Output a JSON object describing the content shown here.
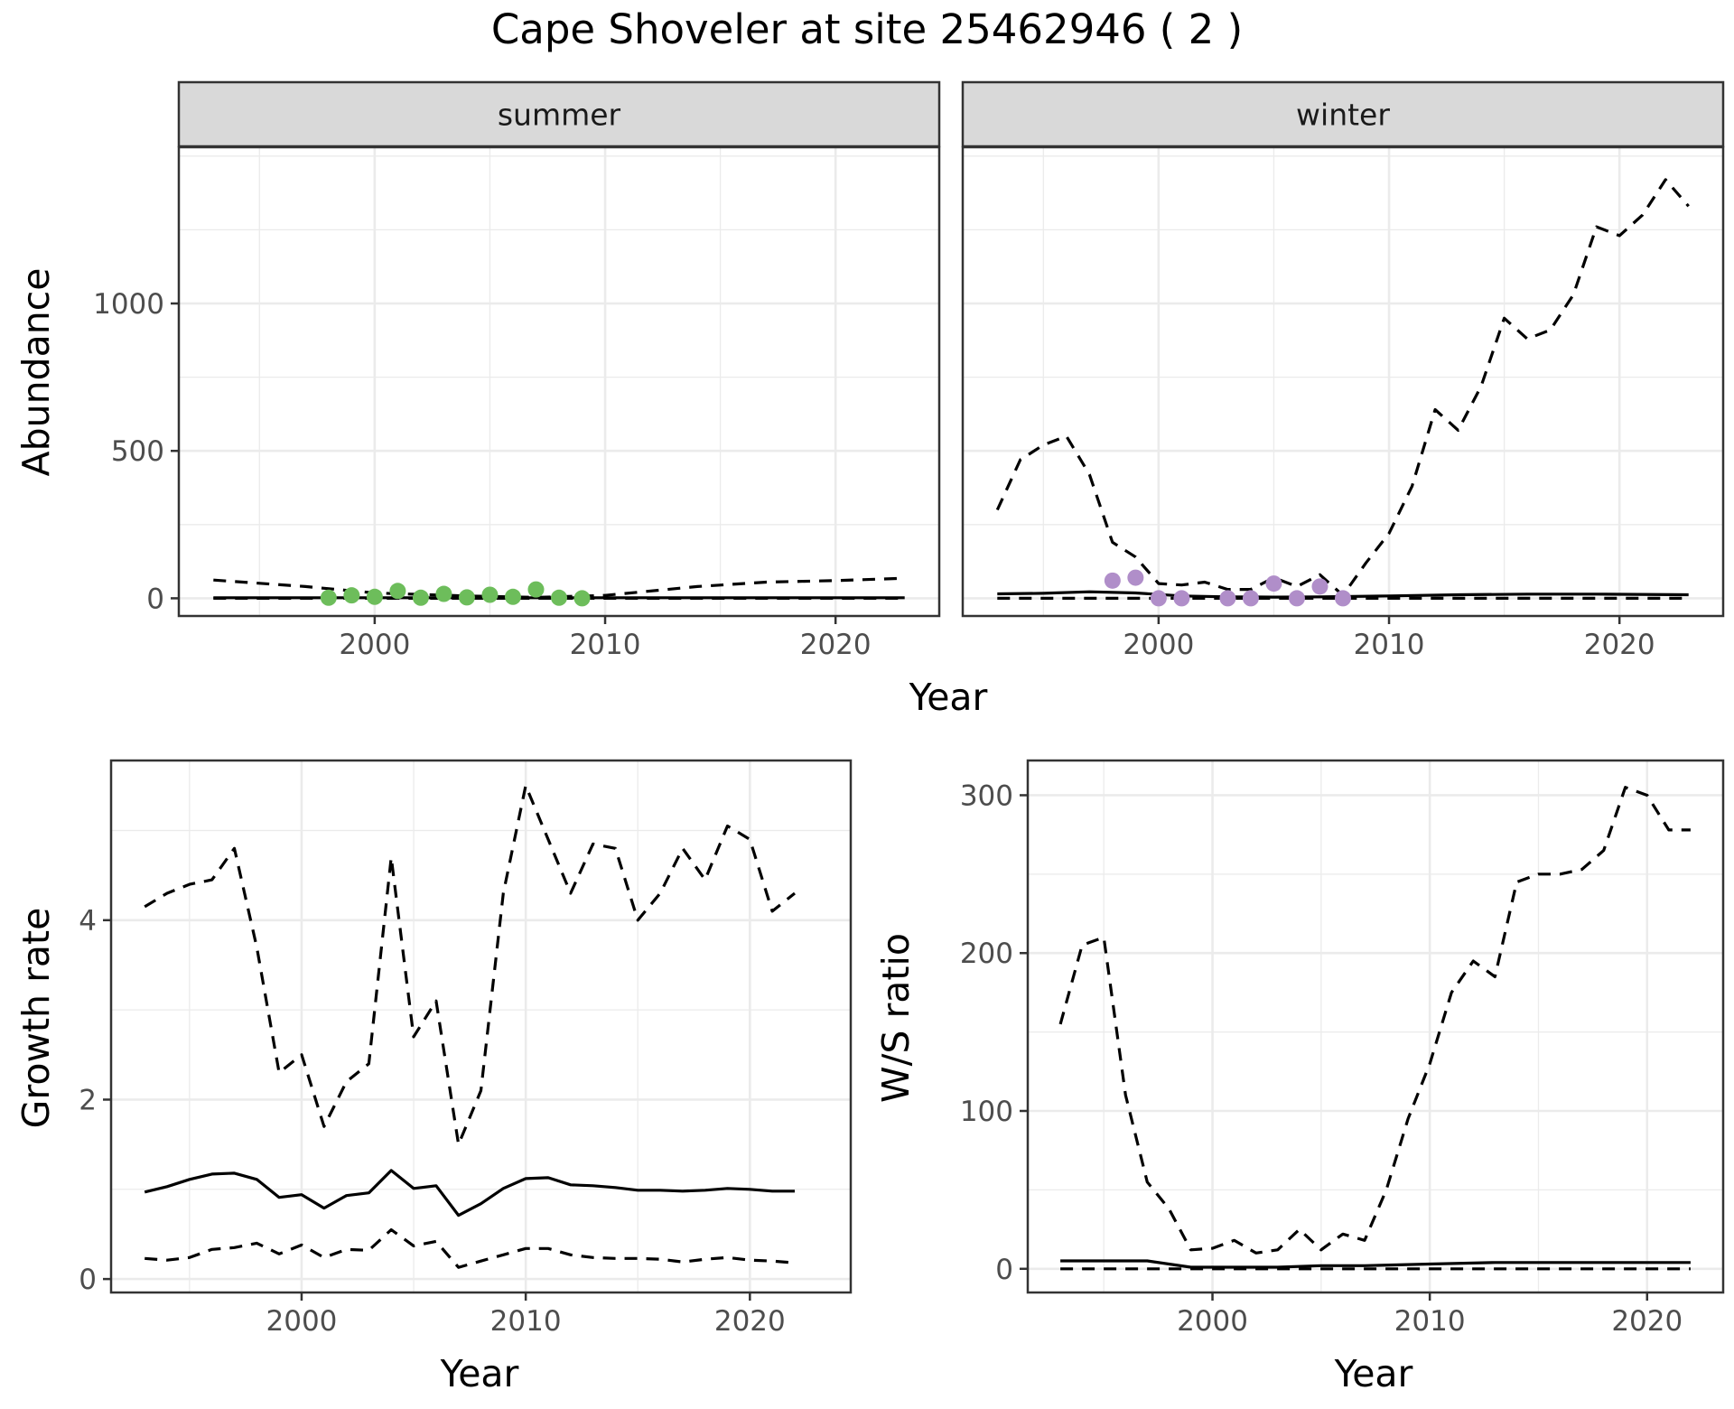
{
  "figure": {
    "title": "Cape Shoveler at site 25462946 ( 2 )"
  },
  "chart_data": [
    {
      "type": "line",
      "panel": "abundance",
      "facets": [
        "summer",
        "winter"
      ],
      "xlabel": "Year",
      "ylabel": "Abundance",
      "xlim": [
        1991.5,
        2024.5
      ],
      "ylim": [
        -60,
        1530
      ],
      "xticks": [
        2000,
        2010,
        2020
      ],
      "yticks": [
        0,
        500,
        1000
      ],
      "grid": true,
      "point_colors": {
        "summer": "#6dbd5b",
        "winter": "#b08ec9"
      },
      "series": [
        {
          "facet": "summer",
          "role": "estimate",
          "style": "solid",
          "x": [
            1993,
            2023
          ],
          "y": [
            2,
            2
          ]
        },
        {
          "facet": "summer",
          "role": "upper",
          "style": "dashed",
          "x": [
            1993,
            1997,
            2000,
            2004,
            2007,
            2010,
            2014,
            2017,
            2020,
            2023
          ],
          "y": [
            62,
            40,
            18,
            8,
            3,
            10,
            40,
            55,
            60,
            68
          ]
        },
        {
          "facet": "summer",
          "role": "lower",
          "style": "dashed",
          "x": [
            1993,
            2023
          ],
          "y": [
            0,
            0
          ]
        },
        {
          "facet": "summer",
          "role": "observed",
          "style": "points",
          "x": [
            1998,
            1999,
            2000,
            2001,
            2002,
            2003,
            2004,
            2005,
            2006,
            2007,
            2008,
            2009
          ],
          "y": [
            2,
            10,
            5,
            25,
            2,
            15,
            3,
            12,
            5,
            30,
            2,
            0
          ]
        },
        {
          "facet": "winter",
          "role": "estimate",
          "style": "solid",
          "x": [
            1993,
            1995,
            1997,
            1999,
            2001,
            2003,
            2005,
            2007,
            2010,
            2013,
            2016,
            2019,
            2023
          ],
          "y": [
            15,
            17,
            22,
            18,
            8,
            5,
            4,
            5,
            8,
            12,
            14,
            14,
            12
          ]
        },
        {
          "facet": "winter",
          "role": "upper",
          "style": "dashed",
          "x": [
            1993,
            1994,
            1995,
            1996,
            1997,
            1998,
            1999,
            2000,
            2001,
            2002,
            2003,
            2004,
            2005,
            2006,
            2007,
            2008,
            2009,
            2010,
            2011,
            2012,
            2013,
            2014,
            2015,
            2016,
            2017,
            2018,
            2019,
            2020,
            2021,
            2022,
            2023
          ],
          "y": [
            300,
            470,
            520,
            550,
            420,
            190,
            140,
            50,
            45,
            55,
            30,
            30,
            70,
            40,
            80,
            10,
            120,
            220,
            380,
            640,
            570,
            720,
            950,
            880,
            910,
            1030,
            1260,
            1230,
            1300,
            1420,
            1330
          ]
        },
        {
          "facet": "winter",
          "role": "lower",
          "style": "dashed",
          "x": [
            1993,
            2023
          ],
          "y": [
            0,
            0
          ]
        },
        {
          "facet": "winter",
          "role": "observed",
          "style": "points",
          "x": [
            1998,
            1999,
            2000,
            2001,
            2003,
            2004,
            2005,
            2006,
            2007,
            2008
          ],
          "y": [
            60,
            70,
            0,
            0,
            0,
            0,
            50,
            0,
            40,
            0
          ]
        }
      ]
    },
    {
      "type": "line",
      "panel": "growth-rate",
      "xlabel": "Year",
      "ylabel": "Growth rate",
      "xlim": [
        1991.5,
        2024.5
      ],
      "ylim": [
        -0.15,
        5.78
      ],
      "xticks": [
        2000,
        2010,
        2020
      ],
      "yticks": [
        0,
        2,
        4
      ],
      "grid": true,
      "series": [
        {
          "role": "estimate",
          "style": "solid",
          "x": [
            1993,
            1994,
            1995,
            1996,
            1997,
            1998,
            1999,
            2000,
            2001,
            2002,
            2003,
            2004,
            2005,
            2006,
            2007,
            2008,
            2009,
            2010,
            2011,
            2012,
            2013,
            2014,
            2015,
            2016,
            2017,
            2018,
            2019,
            2020,
            2021,
            2022
          ],
          "y": [
            0.97,
            1.03,
            1.11,
            1.17,
            1.18,
            1.11,
            0.91,
            0.94,
            0.79,
            0.93,
            0.96,
            1.21,
            1.01,
            1.04,
            0.71,
            0.84,
            1.01,
            1.12,
            1.13,
            1.05,
            1.04,
            1.02,
            0.99,
            0.99,
            0.98,
            0.99,
            1.01,
            1.0,
            0.98,
            0.98
          ]
        },
        {
          "role": "upper",
          "style": "dashed",
          "x": [
            1993,
            1994,
            1995,
            1996,
            1997,
            1998,
            1999,
            2000,
            2001,
            2002,
            2003,
            2004,
            2005,
            2006,
            2007,
            2008,
            2009,
            2010,
            2011,
            2012,
            2013,
            2014,
            2015,
            2016,
            2017,
            2018,
            2019,
            2020,
            2021,
            2022
          ],
          "y": [
            4.15,
            4.3,
            4.4,
            4.45,
            4.8,
            3.7,
            2.3,
            2.5,
            1.7,
            2.2,
            2.4,
            4.7,
            2.7,
            3.1,
            1.5,
            2.1,
            4.3,
            5.5,
            4.9,
            4.3,
            4.85,
            4.8,
            4.0,
            4.3,
            4.8,
            4.45,
            5.05,
            4.9,
            4.1,
            4.3
          ]
        },
        {
          "role": "lower",
          "style": "dashed",
          "x": [
            1993,
            1994,
            1995,
            1996,
            1997,
            1998,
            1999,
            2000,
            2001,
            2002,
            2003,
            2004,
            2005,
            2006,
            2007,
            2008,
            2009,
            2010,
            2011,
            2012,
            2013,
            2014,
            2015,
            2016,
            2017,
            2018,
            2019,
            2020,
            2021,
            2022
          ],
          "y": [
            0.23,
            0.21,
            0.24,
            0.33,
            0.35,
            0.4,
            0.28,
            0.38,
            0.24,
            0.33,
            0.32,
            0.55,
            0.37,
            0.42,
            0.13,
            0.2,
            0.27,
            0.34,
            0.34,
            0.27,
            0.24,
            0.23,
            0.23,
            0.22,
            0.19,
            0.22,
            0.24,
            0.21,
            0.2,
            0.18
          ]
        }
      ]
    },
    {
      "type": "line",
      "panel": "ws-ratio",
      "xlabel": "Year",
      "ylabel": "W/S ratio",
      "xlim": [
        1991.5,
        2023.5
      ],
      "ylim": [
        -15,
        322
      ],
      "xticks": [
        2000,
        2010,
        2020
      ],
      "yticks": [
        0,
        100,
        200,
        300
      ],
      "grid": true,
      "series": [
        {
          "role": "estimate",
          "style": "solid",
          "x": [
            1993,
            1995,
            1997,
            1999,
            2001,
            2003,
            2005,
            2007,
            2010,
            2013,
            2016,
            2019,
            2022
          ],
          "y": [
            5,
            5,
            5,
            1,
            1,
            1,
            2,
            2,
            3,
            4,
            4,
            4,
            4
          ]
        },
        {
          "role": "upper",
          "style": "dashed",
          "x": [
            1993,
            1994,
            1995,
            1996,
            1997,
            1998,
            1999,
            2000,
            2001,
            2002,
            2003,
            2004,
            2005,
            2006,
            2007,
            2008,
            2009,
            2010,
            2011,
            2012,
            2013,
            2014,
            2015,
            2016,
            2017,
            2018,
            2019,
            2020,
            2021,
            2022
          ],
          "y": [
            155,
            205,
            210,
            110,
            55,
            38,
            12,
            13,
            18,
            10,
            12,
            25,
            12,
            22,
            18,
            50,
            95,
            130,
            175,
            195,
            185,
            245,
            250,
            250,
            253,
            265,
            305,
            300,
            278,
            278
          ]
        },
        {
          "role": "lower",
          "style": "dashed",
          "x": [
            1993,
            2022
          ],
          "y": [
            0,
            0
          ]
        }
      ]
    }
  ]
}
